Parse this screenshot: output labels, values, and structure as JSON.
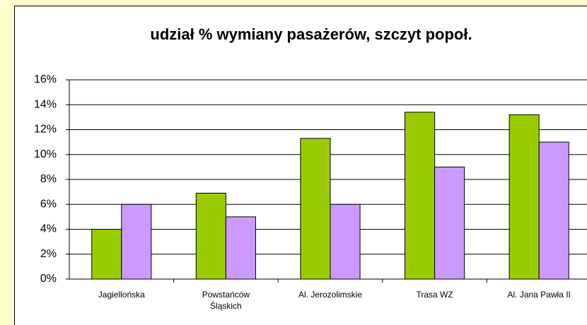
{
  "chart_data": {
    "type": "bar",
    "title": "udział % wymiany pasażerów, szczyt popoł.",
    "categories": [
      "Jagiellońska",
      "Powstańców\nŚląskich",
      "Al. Jerozolimskie",
      "Trasa WZ",
      "Al. Jana Pawła II"
    ],
    "series": [
      {
        "color": "#99cc00",
        "values": [
          4,
          6.9,
          11.3,
          13.4,
          13.2
        ]
      },
      {
        "color": "#cc99ff",
        "values": [
          6,
          5,
          6,
          9,
          11
        ]
      }
    ],
    "ylim": [
      0,
      16
    ],
    "yticks": [
      {
        "value": 0,
        "label": "0%"
      },
      {
        "value": 2,
        "label": "2%"
      },
      {
        "value": 4,
        "label": "4%"
      },
      {
        "value": 6,
        "label": "6%"
      },
      {
        "value": 8,
        "label": "8%"
      },
      {
        "value": 10,
        "label": "10%"
      },
      {
        "value": 12,
        "label": "12%"
      },
      {
        "value": 14,
        "label": "14%"
      },
      {
        "value": 16,
        "label": "16%"
      }
    ],
    "grid": true
  }
}
